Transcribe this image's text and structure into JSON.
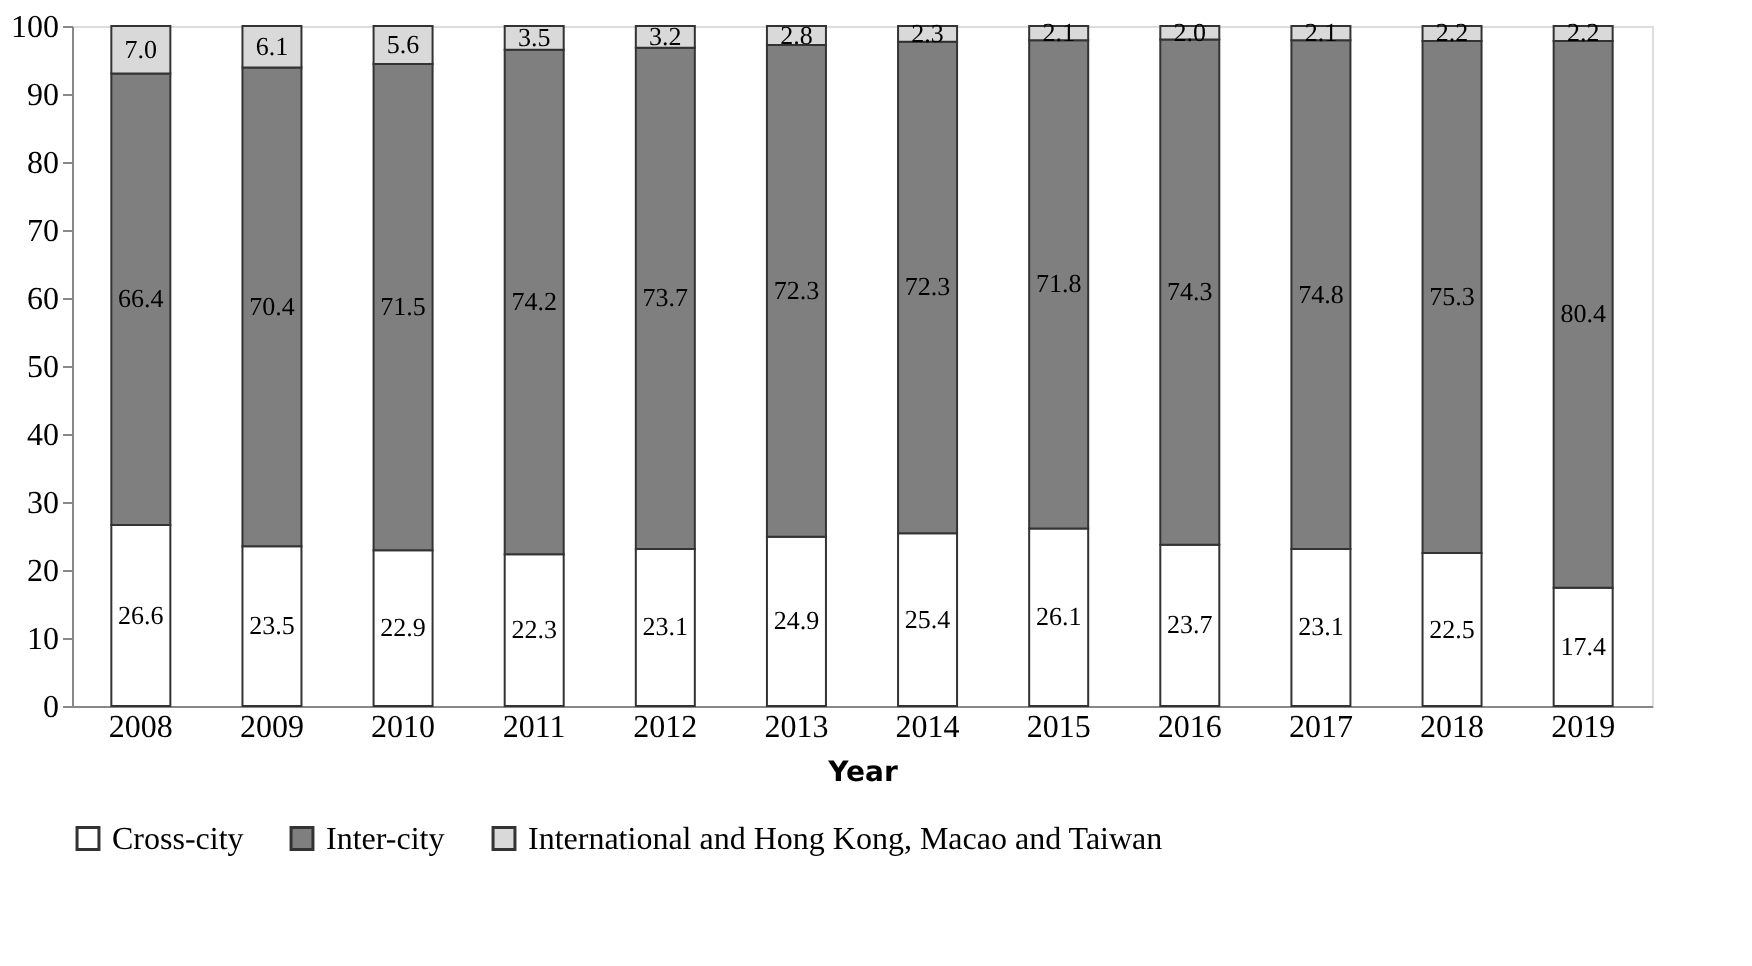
{
  "chart_data": {
    "type": "bar",
    "stacked": true,
    "xlabel": "Year",
    "categories": [
      "2008",
      "2009",
      "2010",
      "2011",
      "2012",
      "2013",
      "2014",
      "2015",
      "2016",
      "2017",
      "2018",
      "2019"
    ],
    "series": [
      {
        "name": "Cross-city",
        "color": "#ffffff",
        "values": [
          26.6,
          23.5,
          22.9,
          22.3,
          23.1,
          24.9,
          25.4,
          26.1,
          23.7,
          23.1,
          22.5,
          17.4
        ],
        "value_labels": [
          "26.6",
          "23.5",
          "22.9",
          "22.3",
          "23.1",
          "24.9",
          "25.4",
          "26.1",
          "23.7",
          "23.1",
          "22.5",
          "17.4"
        ]
      },
      {
        "name": "Inter-city",
        "color": "#7f7f7f",
        "values": [
          66.4,
          70.4,
          71.5,
          74.2,
          73.7,
          72.3,
          72.3,
          71.8,
          74.3,
          74.8,
          75.3,
          80.4
        ],
        "value_labels": [
          "66.4",
          "70.4",
          "71.5",
          "74.2",
          "73.7",
          "72.3",
          "72.3",
          "71.8",
          "74.3",
          "74.8",
          "75.3",
          "80.4"
        ]
      },
      {
        "name": "International and Hong Kong, Macao and Taiwan",
        "color": "#d9d9d9",
        "values": [
          7.0,
          6.1,
          5.6,
          3.5,
          3.2,
          2.8,
          2.3,
          2.1,
          2.0,
          2.1,
          2.2,
          2.2
        ],
        "value_labels": [
          "7.0",
          "6.1",
          "5.6",
          "3.5",
          "3.2",
          "2.8",
          "2.3",
          "2.1",
          "2.0",
          "2.1",
          "2.2",
          "2.2"
        ]
      }
    ],
    "ylim": [
      0,
      100
    ],
    "yticks": [
      0,
      10,
      20,
      30,
      40,
      50,
      60,
      70,
      80,
      90,
      100
    ],
    "grid": false,
    "legend": "bottom"
  }
}
